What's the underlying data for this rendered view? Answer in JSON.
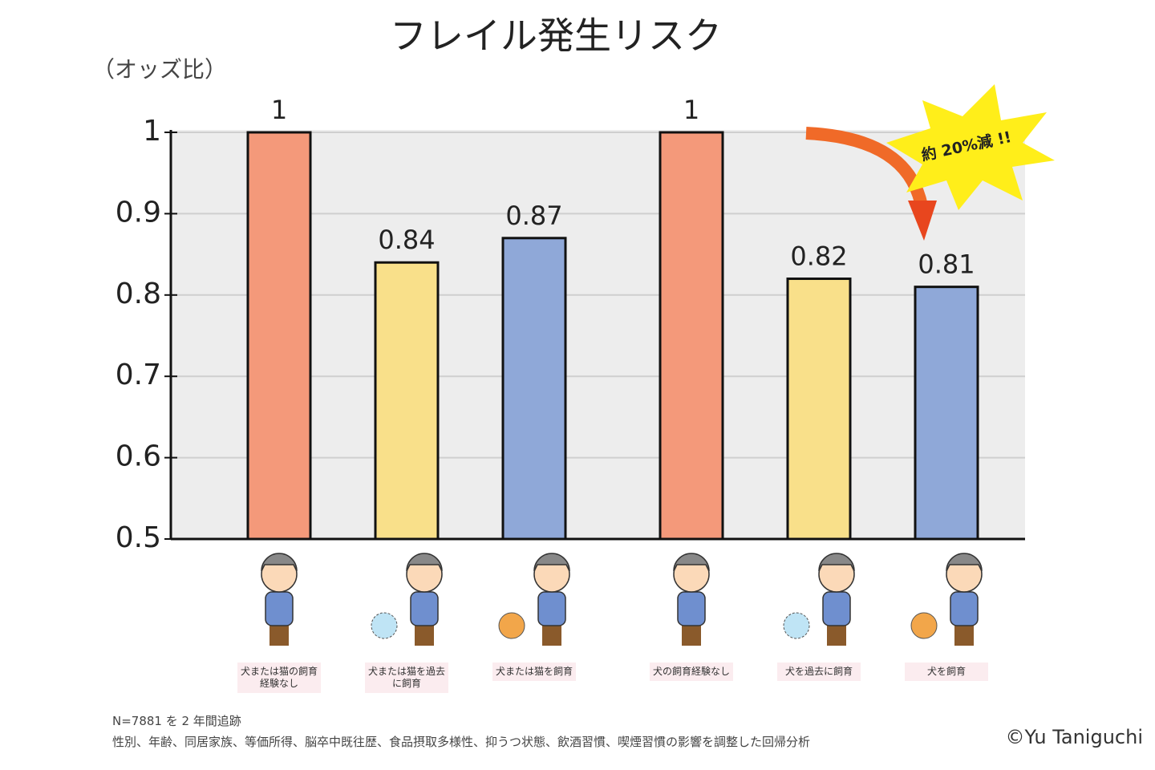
{
  "chart_data": {
    "type": "bar",
    "title": "フレイル発生リスク",
    "y_label": "（オッズ比）",
    "categories": [
      "犬または猫の飼育経験なし",
      "犬または猫を過去に飼育",
      "犬または猫を飼育",
      "犬の飼育経験なし",
      "犬を過去に飼育",
      "犬を飼育"
    ],
    "values": [
      1,
      0.84,
      0.87,
      1,
      0.82,
      0.81
    ],
    "colors": [
      "#f4997a",
      "#f9e08a",
      "#8fa8d8",
      "#f4997a",
      "#f9e08a",
      "#8fa8d8"
    ],
    "ylim": [
      0.5,
      1
    ],
    "yticks": [
      0.5,
      0.6,
      0.7,
      0.8,
      0.9,
      1
    ],
    "grid": true,
    "annotation": "約 20%減 !!",
    "notes": [
      "N=7881 を 2 年間追跡",
      "性別、年齢、同居家族、等価所得、脳卒中既往歴、食品摂取多様性、抑うつ状態、飲酒習慣、喫煙習慣の影響を調整した回帰分析"
    ],
    "credit": "©Yu Taniguchi"
  }
}
